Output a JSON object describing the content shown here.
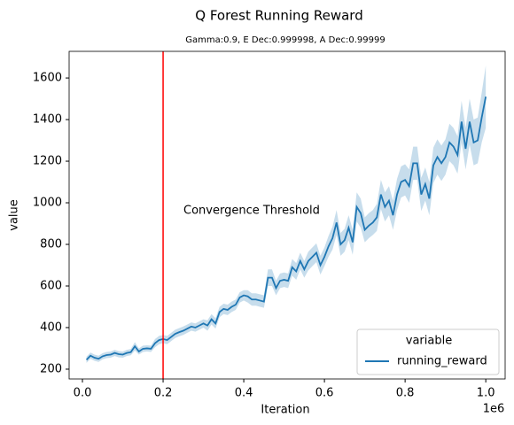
{
  "chart_data": {
    "type": "line",
    "title": "Q Forest Running Reward",
    "subtitle": "Gamma:0.9, E Dec:0.999998, A Dec:0.99999",
    "x_label": "Iteration",
    "x_offset_label": "1e6",
    "y_label": "value",
    "annotation": "Convergence Threshold",
    "annotation_color": "red",
    "vline": {
      "x": 200000,
      "color": "red"
    },
    "legend": {
      "title": "variable",
      "position": "lower right"
    },
    "xlim": [
      -33000,
      1048000
    ],
    "ylim": [
      153,
      1728
    ],
    "xticks": [
      {
        "value": 0,
        "label": "0.0"
      },
      {
        "value": 200000,
        "label": "0.2"
      },
      {
        "value": 400000,
        "label": "0.4"
      },
      {
        "value": 600000,
        "label": "0.6"
      },
      {
        "value": 800000,
        "label": "0.8"
      },
      {
        "value": 1000000,
        "label": "1.0"
      }
    ],
    "yticks": [
      200,
      400,
      600,
      800,
      1000,
      1200,
      1400,
      1600
    ],
    "x": [
      10000,
      20000,
      30000,
      40000,
      50000,
      60000,
      70000,
      80000,
      90000,
      100000,
      110000,
      120000,
      130000,
      140000,
      150000,
      160000,
      170000,
      180000,
      190000,
      200000,
      210000,
      220000,
      230000,
      240000,
      250000,
      260000,
      270000,
      280000,
      290000,
      300000,
      310000,
      320000,
      330000,
      340000,
      350000,
      360000,
      370000,
      380000,
      390000,
      400000,
      410000,
      420000,
      430000,
      440000,
      450000,
      460000,
      470000,
      480000,
      490000,
      500000,
      510000,
      520000,
      530000,
      540000,
      550000,
      560000,
      570000,
      580000,
      590000,
      600000,
      610000,
      620000,
      630000,
      640000,
      650000,
      660000,
      670000,
      680000,
      690000,
      700000,
      710000,
      720000,
      730000,
      740000,
      750000,
      760000,
      770000,
      780000,
      790000,
      800000,
      810000,
      820000,
      830000,
      840000,
      850000,
      860000,
      870000,
      880000,
      890000,
      900000,
      910000,
      920000,
      930000,
      940000,
      950000,
      960000,
      970000,
      980000,
      990000,
      1000000
    ],
    "series": [
      {
        "name": "running_reward",
        "color": "#1f77b4",
        "values": [
          245,
          265,
          255,
          250,
          262,
          268,
          270,
          278,
          272,
          270,
          278,
          282,
          310,
          285,
          298,
          300,
          298,
          325,
          340,
          345,
          340,
          355,
          370,
          378,
          385,
          395,
          405,
          400,
          410,
          420,
          410,
          440,
          420,
          475,
          490,
          485,
          500,
          510,
          545,
          555,
          550,
          535,
          535,
          530,
          525,
          640,
          640,
          590,
          625,
          630,
          625,
          690,
          670,
          720,
          680,
          720,
          740,
          760,
          700,
          740,
          790,
          830,
          905,
          800,
          820,
          880,
          810,
          980,
          950,
          870,
          890,
          905,
          930,
          1040,
          980,
          1010,
          940,
          1040,
          1100,
          1110,
          1080,
          1190,
          1190,
          1040,
          1090,
          1020,
          1180,
          1220,
          1190,
          1220,
          1290,
          1270,
          1230,
          1390,
          1260,
          1390,
          1290,
          1300,
          1410,
          1510
        ],
        "errors": [
          15,
          15,
          15,
          15,
          15,
          15,
          15,
          15,
          15,
          15,
          15,
          15,
          20,
          15,
          15,
          15,
          15,
          20,
          20,
          20,
          20,
          20,
          20,
          20,
          20,
          20,
          20,
          20,
          20,
          20,
          25,
          25,
          25,
          25,
          25,
          25,
          25,
          25,
          25,
          25,
          30,
          30,
          30,
          30,
          30,
          40,
          40,
          35,
          35,
          35,
          35,
          40,
          40,
          40,
          40,
          45,
          45,
          45,
          45,
          45,
          50,
          55,
          60,
          55,
          55,
          60,
          60,
          70,
          70,
          60,
          60,
          60,
          65,
          70,
          70,
          70,
          70,
          75,
          75,
          75,
          80,
          80,
          80,
          80,
          80,
          80,
          85,
          85,
          85,
          85,
          90,
          90,
          90,
          100,
          100,
          110,
          110,
          110,
          120,
          150
        ]
      }
    ]
  }
}
